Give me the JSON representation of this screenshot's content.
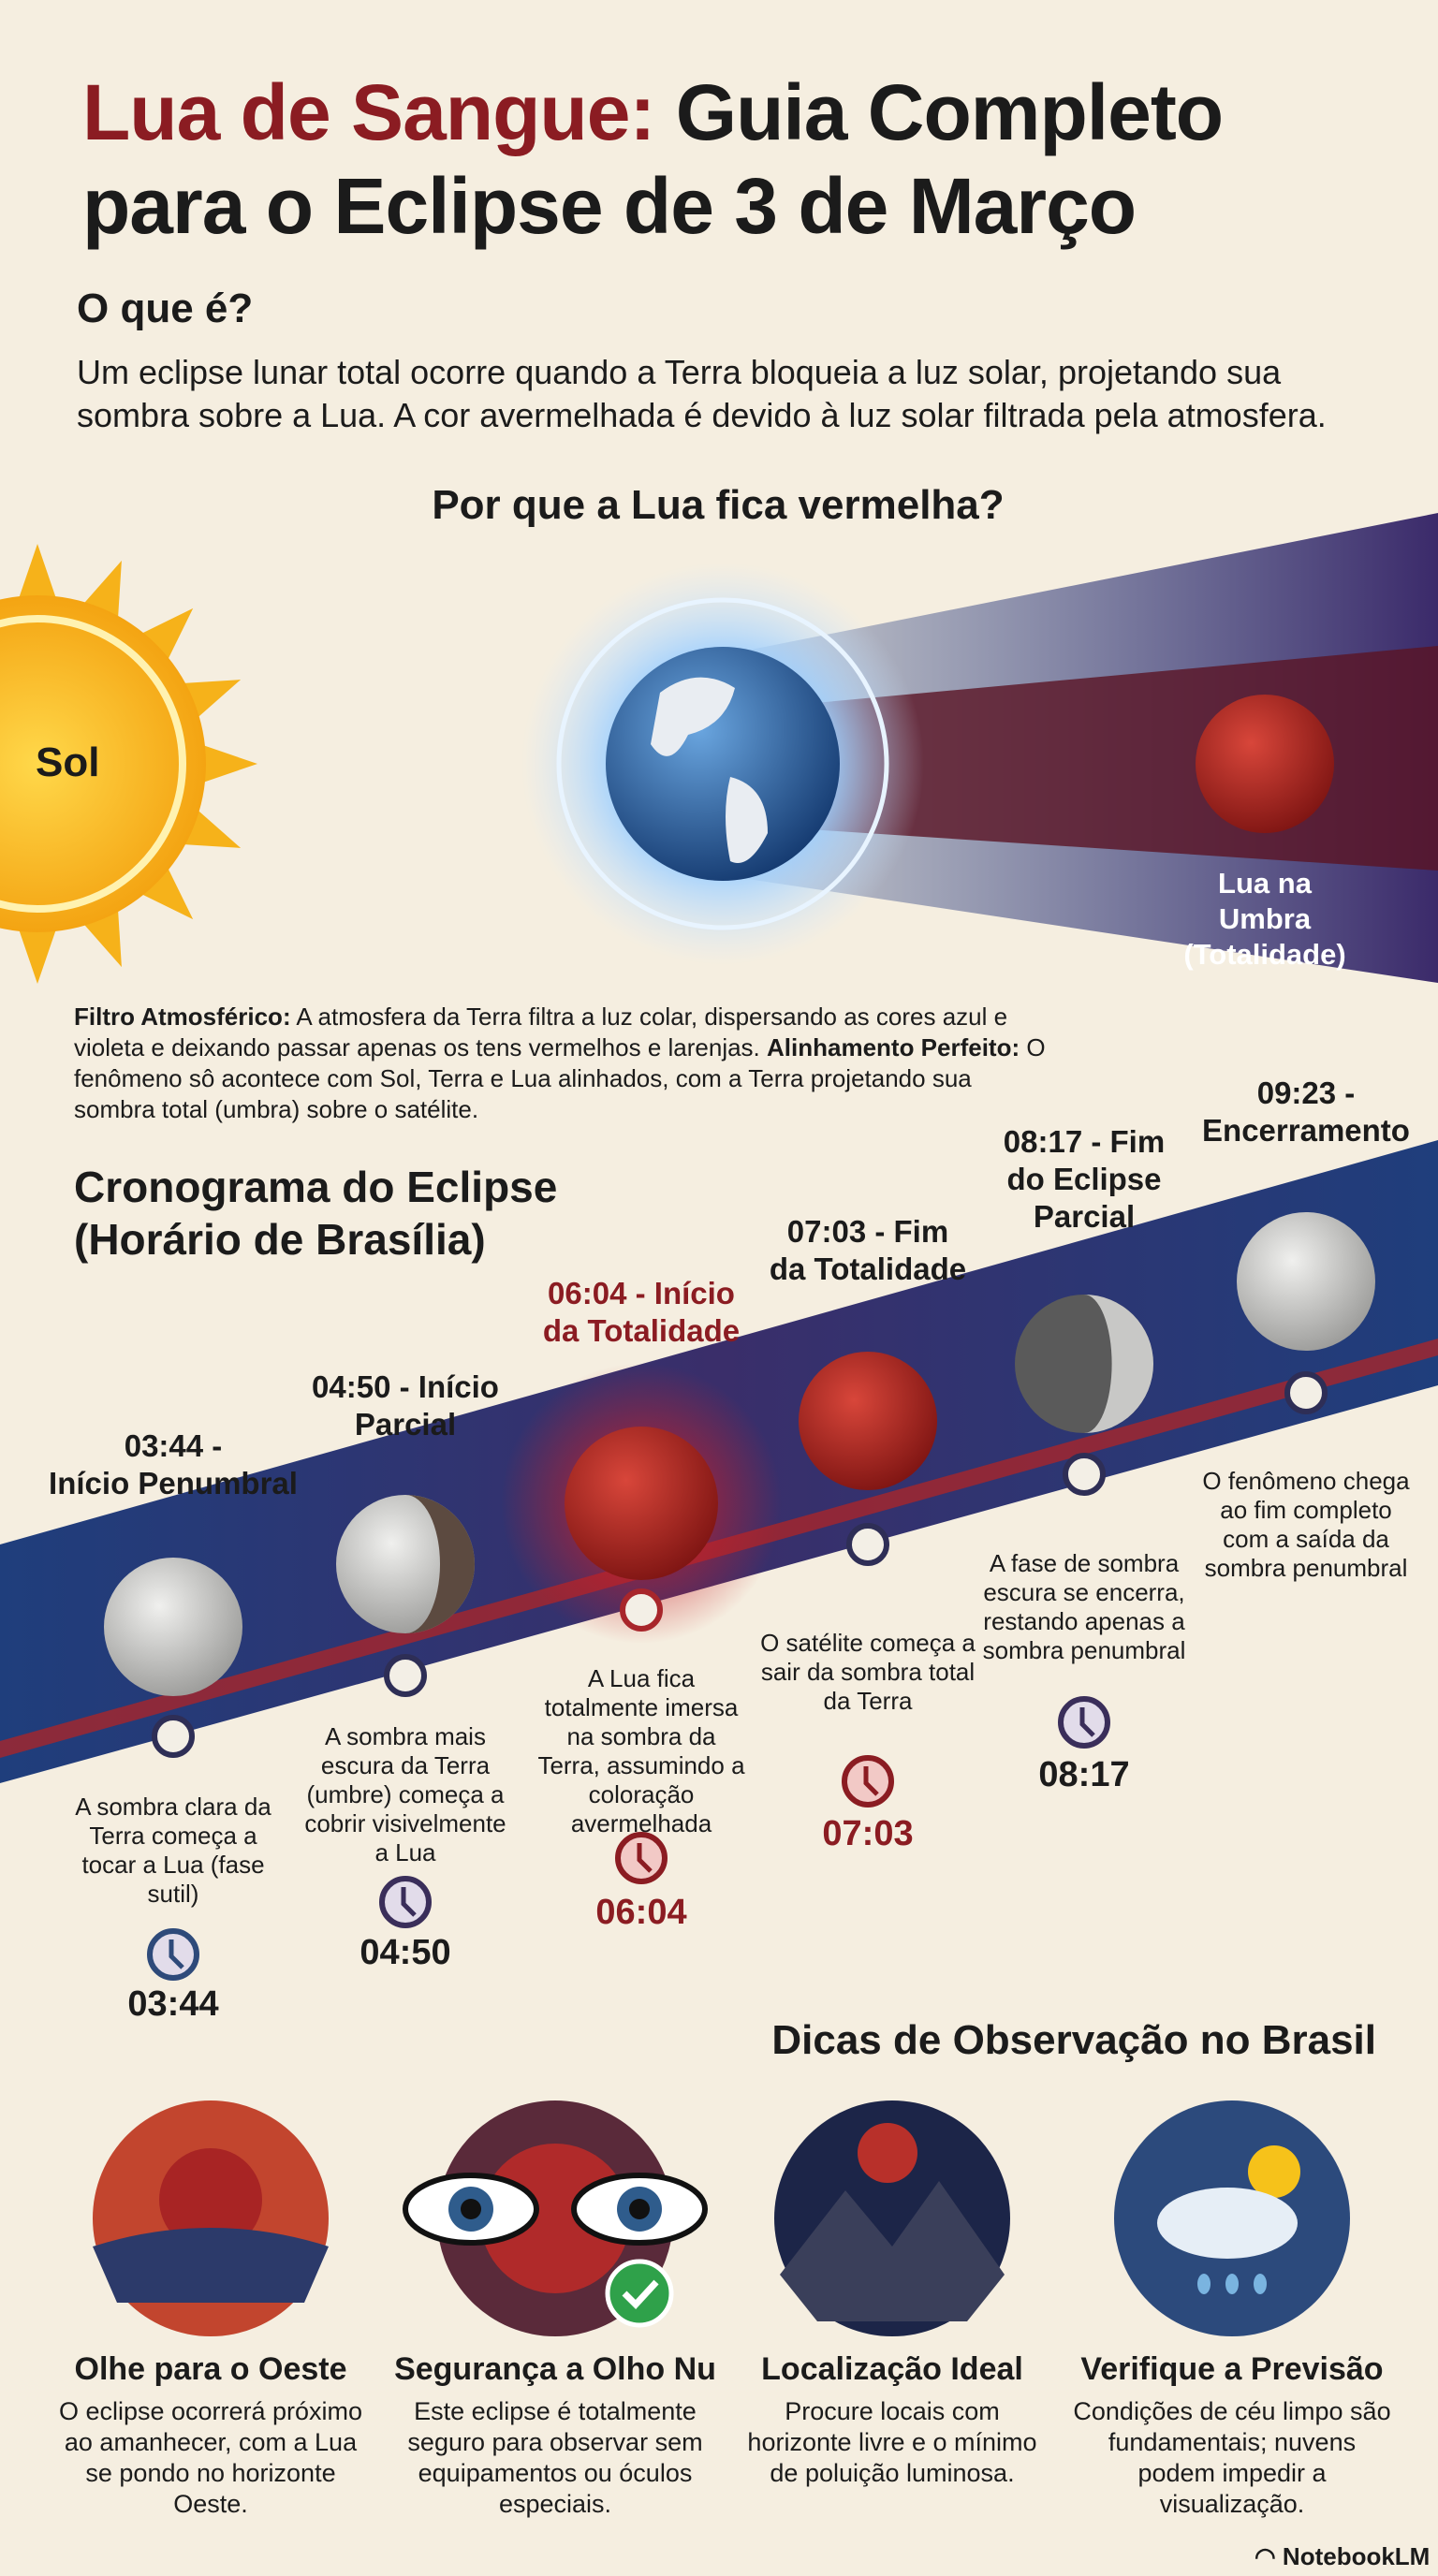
{
  "title": {
    "highlight": "Lua de Sangue:",
    "rest_line1": "Guia Completo",
    "line2": "para o Eclipse de 3 de Março"
  },
  "what_is": {
    "heading": "O que é?",
    "text": "Um eclipse lunar total ocorre quando a Terra bloqueia a luz solar, projetando sua sombra sobre a Lua. A cor avermelhada é devido à luz solar filtrada pela atmosfera."
  },
  "why_red": {
    "heading": "Por que a Lua fica vermelha?",
    "sun_label": "Sol",
    "moon_label": "Lua na Umbra (Totalidade)",
    "filter_label": "Filtro Atmosférico:",
    "filter_text": " A atmosfera da Terra filtra a luz colar, dispersando as cores azul e violeta e deixando passar apenas os tens vermelhos e larenjas. ",
    "align_label": "Alinhamento Perfeito:",
    "align_text": " O fenômeno sô acontece com Sol, Terra e Lua alinhados, com a Terra projetando sua sombra total (umbra) sobre o satélite."
  },
  "timeline": {
    "heading_line1": "Cronograma do Eclipse",
    "heading_line2": "(Horário de Brasília)",
    "events": [
      {
        "title": "03:44 -\nInício Penumbral",
        "desc": "A sombra clara da Terra começa a tocar a Lua (fase sutil)",
        "time": "03:44",
        "moon": "full-grey",
        "highlight": false
      },
      {
        "title": "04:50 - Início\nParcial",
        "desc": "A sombra mais escura da Terra (umbre) começa a cobrir visivelmente a Lua",
        "time": "04:50",
        "moon": "partial",
        "highlight": false
      },
      {
        "title": "06:04 - Início\nda Totalidade",
        "desc": "A Lua fica totalmente imersa na sombra da Terra, assumindo a coloração avermelhada",
        "time": "06:04",
        "moon": "blood",
        "highlight": true
      },
      {
        "title": "07:03 - Fim\nda Totalidade",
        "desc": "O satélite começa a sair da sombra total da Terra",
        "time": "07:03",
        "moon": "blood-exit",
        "highlight": false
      },
      {
        "title": "08:17 - Fim\ndo Eclipse\nParcial",
        "desc": "A fase de sombra escura se encerra, restando apenas a sombra penumbral",
        "time": "08:17",
        "moon": "partial-dark",
        "highlight": false
      },
      {
        "title": "09:23 -\nEncerramento",
        "desc": "O fenômeno chega ao fim completo com a saída da sombra penumbral",
        "time": "",
        "moon": "full-white",
        "highlight": false
      }
    ]
  },
  "tips": {
    "heading": "Dicas de Observação no Brasil",
    "items": [
      {
        "title": "Olhe para o Oeste",
        "desc": "O eclipse ocorrerá próximo ao amanhecer, com a Lua se pondo no horizonte Oeste.",
        "icon": "sunset-moon-icon"
      },
      {
        "title": "Segurança a Olho Nu",
        "desc": "Este eclipse é totalmente seguro para observar sem equipamentos ou óculos especiais.",
        "icon": "eyes-check-icon"
      },
      {
        "title": "Localização Ideal",
        "desc": "Procure locais com horizonte livre e o mínimo de poluição luminosa.",
        "icon": "mountain-night-icon"
      },
      {
        "title": "Verifique a Previsão",
        "desc": "Condições de céu limpo são fundamentais; nuvens podem impedir a visualização.",
        "icon": "weather-cloud-icon"
      }
    ]
  },
  "footer": {
    "brand": "NotebookLM"
  },
  "colors": {
    "background": "#f5eee0",
    "title_red": "#8b1c22",
    "band_blue": "#1f3e7c",
    "band_purple": "#4b2c68",
    "band_red": "#a8262b",
    "sun": "#f7b81c"
  }
}
